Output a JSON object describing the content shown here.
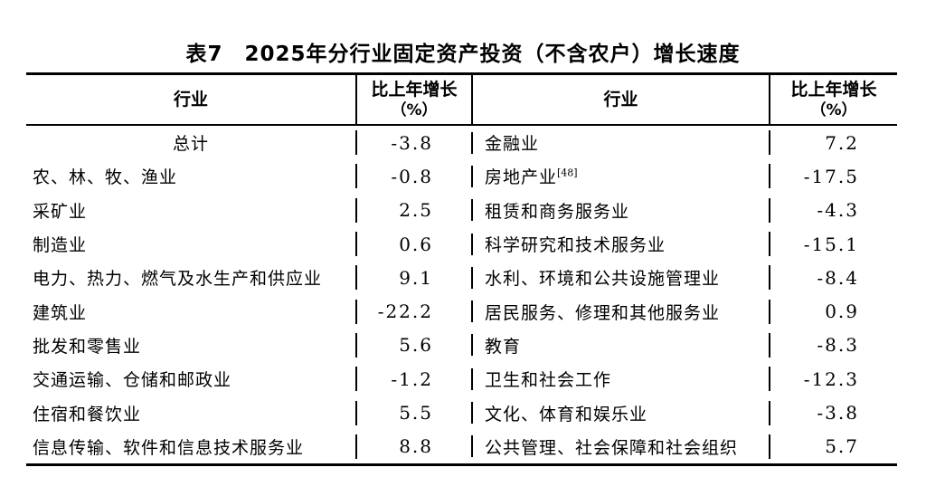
{
  "title": "表7　2025年分行业固定资产投资（不含农户）增长速度",
  "header": {
    "industry": "行业",
    "growth_line1": "比上年增长",
    "growth_line2": "（%）"
  },
  "rows": [
    {
      "left_industry": "总计",
      "left_value": "-3.8",
      "right_industry": "金融业",
      "right_value": "7.2"
    },
    {
      "left_industry": "农、林、牧、渔业",
      "left_value": "-0.8",
      "right_industry": "房地产业",
      "right_sup": "[48]",
      "right_value": "-17.5"
    },
    {
      "left_industry": "采矿业",
      "left_value": "2.5",
      "right_industry": "租赁和商务服务业",
      "right_value": "-4.3"
    },
    {
      "left_industry": "制造业",
      "left_value": "0.6",
      "right_industry": "科学研究和技术服务业",
      "right_value": "-15.1"
    },
    {
      "left_industry": "电力、热力、燃气及水生产和供应业",
      "left_value": "9.1",
      "right_industry": "水利、环境和公共设施管理业",
      "right_value": "-8.4"
    },
    {
      "left_industry": "建筑业",
      "left_value": "-22.2",
      "right_industry": "居民服务、修理和其他服务业",
      "right_value": "0.9"
    },
    {
      "left_industry": "批发和零售业",
      "left_value": "5.6",
      "right_industry": "教育",
      "right_value": "-8.3"
    },
    {
      "left_industry": "交通运输、仓储和邮政业",
      "left_value": "-1.2",
      "right_industry": "卫生和社会工作",
      "right_value": "-12.3"
    },
    {
      "left_industry": "住宿和餐饮业",
      "left_value": "5.5",
      "right_industry": "文化、体育和娱乐业",
      "right_value": "-3.8"
    },
    {
      "left_industry": "信息传输、软件和信息技术服务业",
      "left_value": "8.8",
      "right_industry": "公共管理、社会保障和社会组织",
      "right_value": "5.7"
    }
  ],
  "chart_data": {
    "type": "table",
    "title": "表7　2025年分行业固定资产投资（不含农户）增长速度",
    "columns": [
      "行业",
      "比上年增长（%）"
    ],
    "records": [
      [
        "总计",
        -3.8
      ],
      [
        "农、林、牧、渔业",
        -0.8
      ],
      [
        "采矿业",
        2.5
      ],
      [
        "制造业",
        0.6
      ],
      [
        "电力、热力、燃气及水生产和供应业",
        9.1
      ],
      [
        "建筑业",
        -22.2
      ],
      [
        "批发和零售业",
        5.6
      ],
      [
        "交通运输、仓储和邮政业",
        -1.2
      ],
      [
        "住宿和餐饮业",
        5.5
      ],
      [
        "信息传输、软件和信息技术服务业",
        8.8
      ],
      [
        "金融业",
        7.2
      ],
      [
        "房地产业[48]",
        -17.5
      ],
      [
        "租赁和商务服务业",
        -4.3
      ],
      [
        "科学研究和技术服务业",
        -15.1
      ],
      [
        "水利、环境和公共设施管理业",
        -8.4
      ],
      [
        "居民服务、修理和其他服务业",
        0.9
      ],
      [
        "教育",
        -8.3
      ],
      [
        "卫生和社会工作",
        -12.3
      ],
      [
        "文化、体育和娱乐业",
        -3.8
      ],
      [
        "公共管理、社会保障和社会组织",
        5.7
      ]
    ]
  }
}
